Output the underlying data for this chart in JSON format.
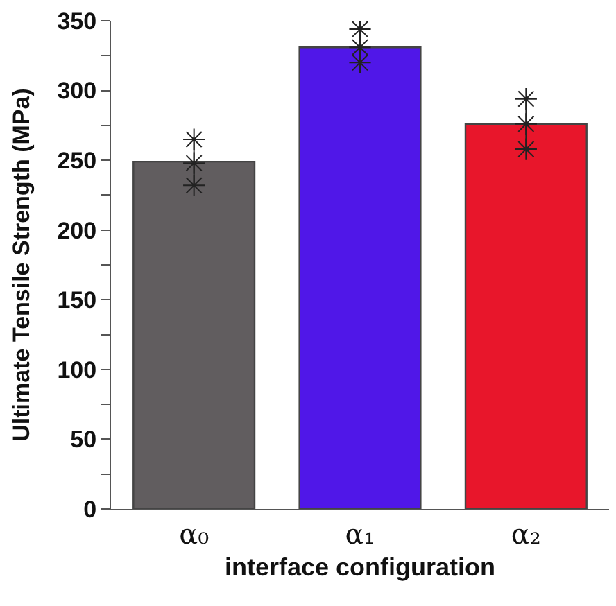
{
  "chart_data": {
    "type": "bar",
    "xlabel": "interface configuration",
    "ylabel": "Ultimate Tensile Strength (MPa)",
    "categories": [
      "α₀",
      "α₁",
      "α₂"
    ],
    "series": [
      {
        "values": [
          249,
          331,
          276
        ],
        "colors": [
          "#615d5f",
          "#5017e8",
          "#e8162b"
        ],
        "errors": [
          [
            232,
            265
          ],
          [
            320,
            344
          ],
          [
            258,
            294
          ]
        ]
      },
      {
        "type": "scatter",
        "color": "#222222",
        "marker": "cross",
        "x": [
          "α₀",
          "α₀",
          "α₀",
          "α₁",
          "α₁",
          "α₁",
          "α₂",
          "α₂",
          "α₂"
        ],
        "values": [
          232,
          248,
          265,
          320,
          331,
          344,
          258,
          276,
          294
        ]
      }
    ],
    "ylim": [
      0,
      350
    ],
    "yticks": [
      0,
      {
        "value": 25,
        "label": null
      },
      50,
      {
        "value": 75,
        "label": null
      },
      100,
      {
        "value": 125,
        "label": null
      },
      150,
      {
        "value": 175,
        "label": null
      },
      200,
      {
        "value": 225,
        "label": null
      },
      250,
      {
        "value": 275,
        "label": null
      },
      300,
      {
        "value": 325,
        "label": null
      },
      350
    ]
  }
}
